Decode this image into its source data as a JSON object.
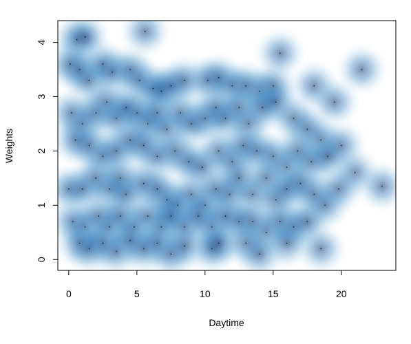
{
  "chart_data": {
    "type": "heatmap",
    "title": "",
    "xlabel": "Daytime",
    "ylabel": "Weights",
    "xlim": [
      -0.8,
      24
    ],
    "ylim": [
      -0.2,
      4.4
    ],
    "xticks": [
      0,
      5,
      10,
      15,
      20
    ],
    "yticks": [
      0,
      1,
      2,
      3,
      4
    ],
    "grid": false,
    "legend": "none",
    "colors": {
      "low": "#ffffff",
      "high": "#08306b",
      "mid": "#2171b5",
      "point": "#000000"
    },
    "points": [
      [
        0.6,
        4.05
      ],
      [
        1.2,
        4.1
      ],
      [
        5.6,
        4.2
      ],
      [
        0.1,
        3.6
      ],
      [
        0.8,
        3.5
      ],
      [
        1.5,
        3.3
      ],
      [
        2.5,
        3.6
      ],
      [
        3.2,
        3.45
      ],
      [
        4.5,
        3.5
      ],
      [
        5.2,
        3.3
      ],
      [
        6.2,
        3.15
      ],
      [
        6.8,
        3.1
      ],
      [
        7.5,
        3.2
      ],
      [
        8.5,
        3.3
      ],
      [
        10.2,
        3.3
      ],
      [
        11.0,
        3.35
      ],
      [
        12.0,
        3.2
      ],
      [
        13.0,
        3.2
      ],
      [
        14.0,
        3.1
      ],
      [
        15.0,
        3.2
      ],
      [
        15.5,
        3.8
      ],
      [
        18.0,
        3.2
      ],
      [
        19.5,
        2.9
      ],
      [
        21.5,
        3.5
      ],
      [
        0.2,
        2.7
      ],
      [
        1.0,
        2.5
      ],
      [
        2.0,
        2.7
      ],
      [
        2.8,
        2.9
      ],
      [
        3.5,
        2.6
      ],
      [
        4.2,
        2.8
      ],
      [
        5.0,
        2.7
      ],
      [
        5.8,
        2.5
      ],
      [
        6.5,
        2.7
      ],
      [
        7.2,
        2.4
      ],
      [
        8.2,
        2.7
      ],
      [
        9.0,
        2.5
      ],
      [
        10.0,
        2.6
      ],
      [
        10.8,
        2.8
      ],
      [
        11.5,
        2.6
      ],
      [
        12.5,
        2.8
      ],
      [
        13.2,
        2.5
      ],
      [
        14.2,
        2.8
      ],
      [
        15.2,
        2.9
      ],
      [
        16.5,
        2.6
      ],
      [
        17.5,
        2.4
      ],
      [
        18.5,
        2.2
      ],
      [
        20.0,
        2.1
      ],
      [
        0.5,
        2.2
      ],
      [
        1.5,
        2.1
      ],
      [
        2.5,
        1.9
      ],
      [
        3.5,
        2.0
      ],
      [
        4.5,
        2.2
      ],
      [
        5.5,
        2.1
      ],
      [
        6.5,
        1.9
      ],
      [
        7.8,
        2.0
      ],
      [
        8.8,
        1.8
      ],
      [
        9.8,
        1.7
      ],
      [
        11.0,
        2.0
      ],
      [
        12.0,
        1.8
      ],
      [
        12.8,
        2.1
      ],
      [
        13.8,
        2.0
      ],
      [
        15.0,
        1.9
      ],
      [
        16.0,
        1.7
      ],
      [
        16.8,
        2.0
      ],
      [
        17.8,
        1.8
      ],
      [
        19.0,
        1.9
      ],
      [
        21.0,
        1.6
      ],
      [
        23.0,
        1.35
      ],
      [
        0.0,
        1.3
      ],
      [
        1.0,
        1.3
      ],
      [
        2.0,
        1.5
      ],
      [
        3.0,
        1.3
      ],
      [
        3.8,
        1.5
      ],
      [
        4.2,
        1.2
      ],
      [
        5.5,
        1.4
      ],
      [
        6.5,
        1.3
      ],
      [
        7.2,
        1.1
      ],
      [
        8.0,
        1.0
      ],
      [
        9.0,
        1.2
      ],
      [
        10.0,
        1.0
      ],
      [
        10.8,
        1.3
      ],
      [
        11.8,
        1.2
      ],
      [
        12.5,
        1.5
      ],
      [
        13.5,
        1.2
      ],
      [
        14.5,
        1.5
      ],
      [
        15.2,
        1.1
      ],
      [
        16.0,
        1.3
      ],
      [
        17.0,
        1.4
      ],
      [
        18.0,
        1.2
      ],
      [
        18.8,
        1.0
      ],
      [
        19.8,
        1.3
      ],
      [
        0.3,
        0.7
      ],
      [
        1.2,
        0.6
      ],
      [
        2.2,
        0.8
      ],
      [
        3.0,
        0.6
      ],
      [
        3.8,
        0.8
      ],
      [
        4.8,
        0.6
      ],
      [
        5.8,
        0.8
      ],
      [
        6.8,
        0.6
      ],
      [
        7.5,
        0.8
      ],
      [
        8.5,
        0.6
      ],
      [
        9.5,
        0.8
      ],
      [
        10.5,
        0.6
      ],
      [
        11.5,
        0.8
      ],
      [
        12.5,
        0.7
      ],
      [
        13.5,
        0.7
      ],
      [
        14.5,
        0.5
      ],
      [
        15.5,
        0.7
      ],
      [
        16.5,
        0.6
      ],
      [
        17.5,
        0.7
      ],
      [
        0.8,
        0.3
      ],
      [
        1.5,
        0.2
      ],
      [
        2.5,
        0.3
      ],
      [
        3.5,
        0.15
      ],
      [
        4.5,
        0.35
      ],
      [
        5.5,
        0.2
      ],
      [
        6.5,
        0.3
      ],
      [
        7.5,
        0.1
      ],
      [
        8.5,
        0.25
      ],
      [
        10.5,
        0.2
      ],
      [
        11.0,
        0.3
      ],
      [
        13.0,
        0.3
      ],
      [
        14.0,
        0.1
      ],
      [
        16.0,
        0.3
      ],
      [
        18.5,
        0.2
      ]
    ]
  }
}
